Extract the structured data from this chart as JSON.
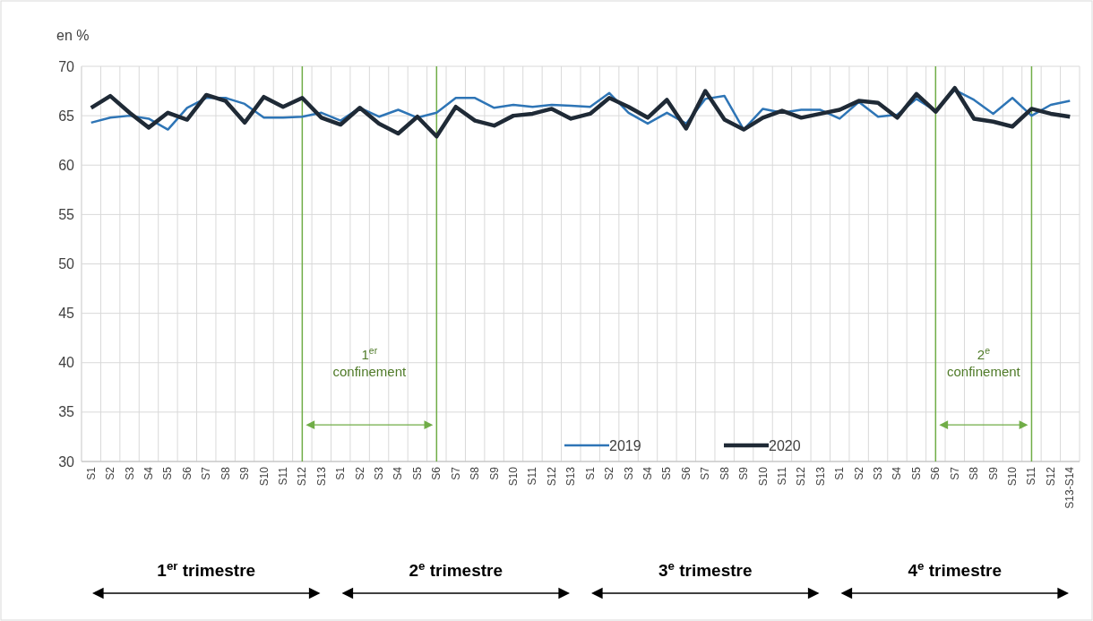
{
  "chart_data": {
    "type": "line",
    "ylabel": "en %",
    "categories": [
      "S1",
      "S2",
      "S3",
      "S4",
      "S5",
      "S6",
      "S7",
      "S8",
      "S9",
      "S10",
      "S11",
      "S12",
      "S13",
      "S1",
      "S2",
      "S3",
      "S4",
      "S5",
      "S6",
      "S7",
      "S8",
      "S9",
      "S10",
      "S11",
      "S12",
      "S13",
      "S1",
      "S2",
      "S3",
      "S4",
      "S5",
      "S6",
      "S7",
      "S8",
      "S9",
      "S10",
      "S11",
      "S12",
      "S13",
      "S1",
      "S2",
      "S3",
      "S4",
      "S5",
      "S6",
      "S7",
      "S8",
      "S9",
      "S10",
      "S11",
      "S12",
      "S13-S14"
    ],
    "series": [
      {
        "name": "2019",
        "color": "#2e75b6",
        "values": [
          64.3,
          64.8,
          65.0,
          64.7,
          63.6,
          65.8,
          66.8,
          66.8,
          66.2,
          64.8,
          64.8,
          64.9,
          65.3,
          64.5,
          65.8,
          64.9,
          65.6,
          64.8,
          65.3,
          66.8,
          66.8,
          65.8,
          66.1,
          65.9,
          66.1,
          66.0,
          65.9,
          67.3,
          65.3,
          64.2,
          65.3,
          64.2,
          66.7,
          67.0,
          63.6,
          65.7,
          65.3,
          65.6,
          65.6,
          64.7,
          66.4,
          64.9,
          65.1,
          66.7,
          65.5,
          67.6,
          66.6,
          65.2,
          66.8,
          65.0,
          66.1,
          66.5
        ]
      },
      {
        "name": "2020",
        "color": "#1f2a36",
        "values": [
          65.8,
          67.0,
          65.3,
          63.8,
          65.3,
          64.6,
          67.1,
          66.5,
          64.3,
          66.9,
          65.9,
          66.8,
          64.8,
          64.1,
          65.8,
          64.2,
          63.2,
          64.9,
          62.9,
          65.9,
          64.5,
          64.0,
          65.0,
          65.2,
          65.7,
          64.7,
          65.2,
          66.8,
          65.9,
          64.8,
          66.6,
          63.7,
          67.5,
          64.6,
          63.6,
          64.8,
          65.5,
          64.8,
          65.2,
          65.6,
          66.5,
          66.3,
          64.8,
          67.2,
          65.4,
          67.8,
          64.7,
          64.4,
          63.9,
          65.7,
          65.2,
          64.9
        ]
      }
    ],
    "ylim": [
      30,
      70
    ],
    "yticks": [
      30,
      35,
      40,
      45,
      50,
      55,
      60,
      65,
      70
    ],
    "grid": true,
    "legend": "bottom",
    "marker": "none",
    "line_style": "solid",
    "annotations": [
      "1$^{er}$ confinement",
      "2$^{e}$ confinement",
      "1$^{er}$ trimestre",
      "2$^{e}$ trimestre",
      "3$^{e}$ trimestre",
      "4$^{e}$ trimestre"
    ]
  }
}
